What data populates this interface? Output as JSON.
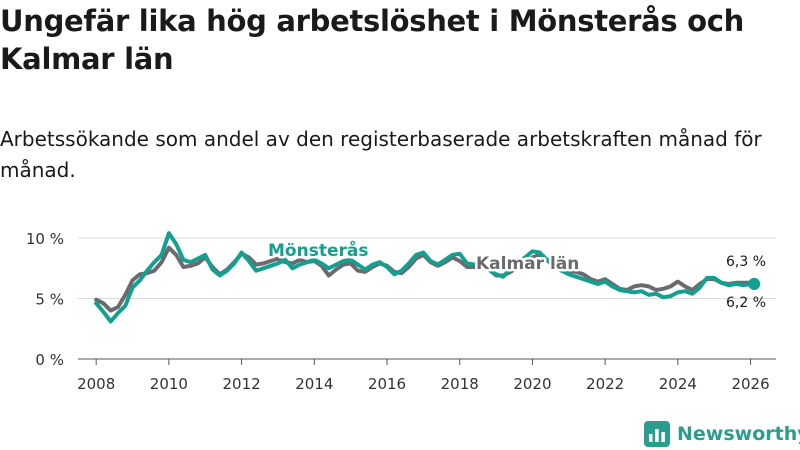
{
  "title": "Ungefär lika hög arbetslöshet i Mönsterås och Kalmar län",
  "subtitle": "Arbetssökande som andel av den registerbaserade arbetskraften månad för månad.",
  "brand": "Newsworthy",
  "colors": {
    "monsteras": "#14a090",
    "kalmar": "#6b6b6f",
    "grid": "#d9d9d9",
    "text": "#333333"
  },
  "chart_data": {
    "type": "line",
    "title": "Ungefär lika hög arbetslöshet i Mönsterås och Kalmar län",
    "xlabel": "",
    "ylabel": "",
    "xlim": [
      2007.5,
      2026.7
    ],
    "ylim": [
      0,
      11
    ],
    "x_ticks": [
      2008,
      2010,
      2012,
      2014,
      2016,
      2018,
      2020,
      2022,
      2024,
      2026
    ],
    "x_tick_labels": [
      "2008",
      "2010",
      "2012",
      "2014",
      "2016",
      "2018",
      "2020",
      "2022",
      "2024",
      "2026"
    ],
    "y_ticks": [
      0,
      5,
      10
    ],
    "y_tick_labels": [
      "0 %",
      "5 %",
      "10 %"
    ],
    "grid": true,
    "series": [
      {
        "name": "Kalmar län",
        "label": "Kalmar län",
        "end_label": "6,3 %",
        "x": [
          2008.0,
          2008.2,
          2008.4,
          2008.6,
          2008.8,
          2009.0,
          2009.2,
          2009.4,
          2009.6,
          2009.8,
          2010.0,
          2010.2,
          2010.4,
          2010.6,
          2010.8,
          2011.0,
          2011.2,
          2011.4,
          2011.6,
          2011.8,
          2012.0,
          2012.2,
          2012.4,
          2012.6,
          2012.8,
          2013.0,
          2013.2,
          2013.4,
          2013.6,
          2013.8,
          2014.0,
          2014.2,
          2014.4,
          2014.6,
          2014.8,
          2015.0,
          2015.2,
          2015.4,
          2015.6,
          2015.8,
          2016.0,
          2016.2,
          2016.4,
          2016.6,
          2016.8,
          2017.0,
          2017.2,
          2017.4,
          2017.6,
          2017.8,
          2018.0,
          2018.2,
          2018.4,
          2018.6,
          2018.8,
          2019.0,
          2019.2,
          2019.4,
          2019.6,
          2019.8,
          2020.0,
          2020.2,
          2020.4,
          2020.6,
          2020.8,
          2021.0,
          2021.2,
          2021.4,
          2021.6,
          2021.8,
          2022.0,
          2022.2,
          2022.4,
          2022.6,
          2022.8,
          2023.0,
          2023.2,
          2023.4,
          2023.6,
          2023.8,
          2024.0,
          2024.2,
          2024.4,
          2024.6,
          2024.8,
          2025.0,
          2025.2,
          2025.4,
          2025.6,
          2025.8,
          2026.0,
          2026.1
        ],
        "values": [
          4.9,
          4.6,
          4.0,
          4.3,
          5.3,
          6.5,
          7.0,
          7.1,
          7.3,
          8.0,
          9.2,
          8.6,
          7.6,
          7.7,
          7.9,
          8.4,
          7.6,
          7.0,
          7.4,
          8.0,
          8.7,
          8.4,
          7.8,
          7.9,
          8.1,
          8.3,
          8.0,
          7.9,
          8.2,
          8.0,
          8.1,
          7.7,
          6.9,
          7.4,
          7.8,
          7.9,
          7.3,
          7.2,
          7.6,
          7.9,
          7.7,
          7.2,
          7.1,
          7.6,
          8.3,
          8.6,
          8.0,
          7.7,
          8.0,
          8.4,
          8.1,
          7.6,
          7.6,
          7.5,
          7.4,
          6.9,
          6.9,
          7.2,
          7.6,
          8.0,
          8.4,
          8.6,
          8.2,
          7.8,
          7.5,
          7.3,
          7.2,
          7.0,
          6.6,
          6.4,
          6.6,
          6.2,
          5.8,
          5.7,
          6.0,
          6.1,
          6.0,
          5.7,
          5.8,
          6.0,
          6.4,
          6.0,
          5.7,
          6.2,
          6.6,
          6.6,
          6.3,
          6.2,
          6.3,
          6.3,
          6.3,
          6.3
        ]
      },
      {
        "name": "Mönsterås",
        "label": "Mönsterås",
        "end_label": "6,2 %",
        "x": [
          2008.0,
          2008.2,
          2008.4,
          2008.6,
          2008.8,
          2009.0,
          2009.2,
          2009.4,
          2009.6,
          2009.8,
          2010.0,
          2010.2,
          2010.4,
          2010.6,
          2010.8,
          2011.0,
          2011.2,
          2011.4,
          2011.6,
          2011.8,
          2012.0,
          2012.2,
          2012.4,
          2012.6,
          2012.8,
          2013.0,
          2013.2,
          2013.4,
          2013.6,
          2013.8,
          2014.0,
          2014.2,
          2014.4,
          2014.6,
          2014.8,
          2015.0,
          2015.2,
          2015.4,
          2015.6,
          2015.8,
          2016.0,
          2016.2,
          2016.4,
          2016.6,
          2016.8,
          2017.0,
          2017.2,
          2017.4,
          2017.6,
          2017.8,
          2018.0,
          2018.2,
          2018.4,
          2018.6,
          2018.8,
          2019.0,
          2019.2,
          2019.4,
          2019.6,
          2019.8,
          2020.0,
          2020.2,
          2020.4,
          2020.6,
          2020.8,
          2021.0,
          2021.2,
          2021.4,
          2021.6,
          2021.8,
          2022.0,
          2022.2,
          2022.4,
          2022.6,
          2022.8,
          2023.0,
          2023.2,
          2023.4,
          2023.6,
          2023.8,
          2024.0,
          2024.2,
          2024.4,
          2024.6,
          2024.8,
          2025.0,
          2025.2,
          2025.4,
          2025.6,
          2025.8,
          2026.0,
          2026.1
        ],
        "values": [
          4.6,
          3.9,
          3.1,
          3.8,
          4.4,
          5.9,
          6.5,
          7.3,
          8.0,
          8.6,
          10.4,
          9.5,
          8.2,
          8.0,
          8.3,
          8.6,
          7.4,
          6.9,
          7.3,
          7.9,
          8.8,
          8.1,
          7.3,
          7.5,
          7.7,
          7.9,
          8.2,
          7.5,
          7.8,
          8.0,
          8.2,
          7.9,
          7.5,
          7.8,
          8.1,
          8.2,
          7.8,
          7.4,
          7.8,
          8.0,
          7.6,
          7.0,
          7.3,
          7.9,
          8.6,
          8.8,
          8.1,
          7.8,
          8.2,
          8.6,
          8.7,
          7.9,
          7.8,
          7.6,
          7.4,
          7.0,
          6.8,
          7.5,
          8.0,
          8.4,
          8.9,
          8.8,
          8.2,
          7.6,
          7.3,
          7.0,
          6.8,
          6.6,
          6.4,
          6.2,
          6.4,
          6.0,
          5.7,
          5.6,
          5.5,
          5.6,
          5.3,
          5.4,
          5.1,
          5.2,
          5.5,
          5.6,
          5.4,
          5.9,
          6.7,
          6.7,
          6.3,
          6.1,
          6.2,
          6.1,
          6.2,
          6.2
        ]
      }
    ]
  }
}
